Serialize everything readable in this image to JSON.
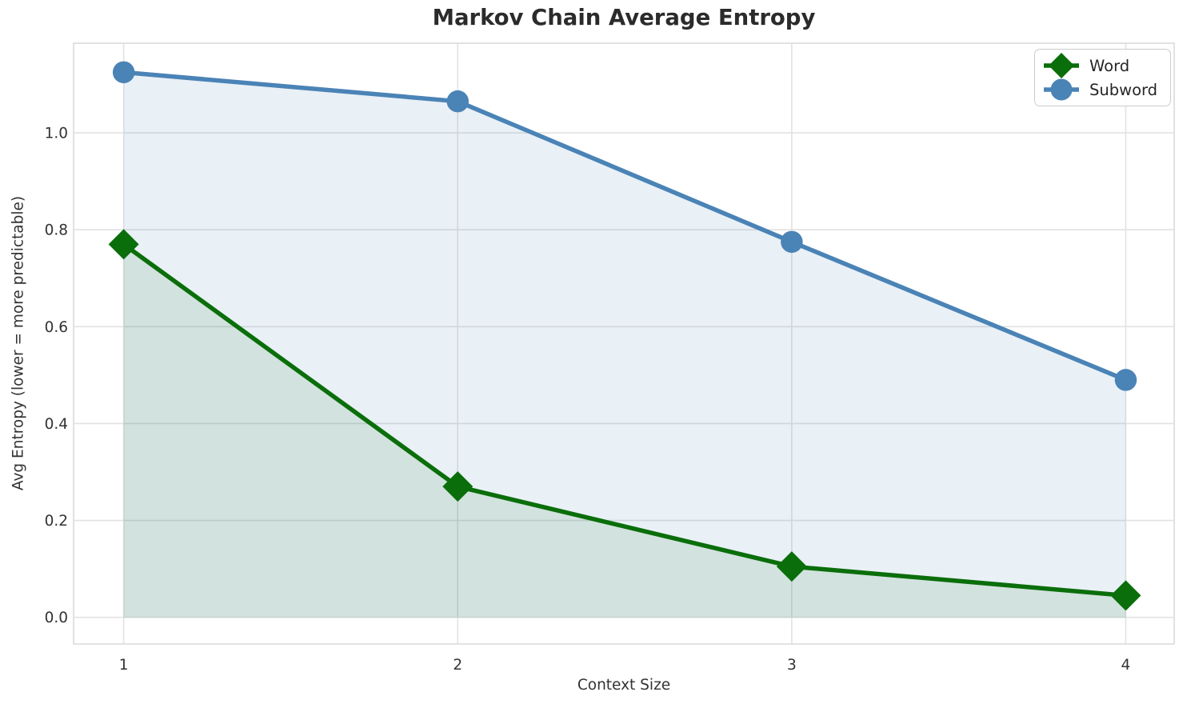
{
  "chart_data": {
    "type": "line",
    "title": "Markov Chain Average Entropy",
    "xlabel": "Context Size",
    "ylabel": "Avg Entropy (lower = more predictable)",
    "x": [
      1,
      2,
      3,
      4
    ],
    "series": [
      {
        "name": "Word",
        "values": [
          0.77,
          0.27,
          0.105,
          0.045
        ],
        "color": "#0a6e0a",
        "marker": "diamond",
        "area_fill": true,
        "area_fill_color": "rgba(10,110,10,0.10)"
      },
      {
        "name": "Subword",
        "values": [
          1.125,
          1.065,
          0.775,
          0.49
        ],
        "color": "#4a83b6",
        "marker": "circle",
        "area_fill": true,
        "area_fill_color": "rgba(70,130,180,0.12)"
      }
    ],
    "x_ticks": {
      "values": [
        1,
        2,
        3,
        4
      ],
      "labels": [
        "1",
        "2",
        "3",
        "4"
      ]
    },
    "y_ticks": {
      "values": [
        0,
        0.2,
        0.4,
        0.6,
        0.8,
        1.0
      ],
      "labels": [
        "0.0",
        "0.2",
        "0.4",
        "0.6",
        "0.8",
        "1.0"
      ]
    },
    "xlim": [
      0.85,
      4.145
    ],
    "ylim": [
      -0.055,
      1.185
    ],
    "grid": true,
    "grid_color": "#e2e2e2",
    "border_color": "#d9d9d9",
    "text_color": "#333333",
    "legend": {
      "position": "upper right",
      "items": [
        "Word",
        "Subword"
      ]
    }
  }
}
